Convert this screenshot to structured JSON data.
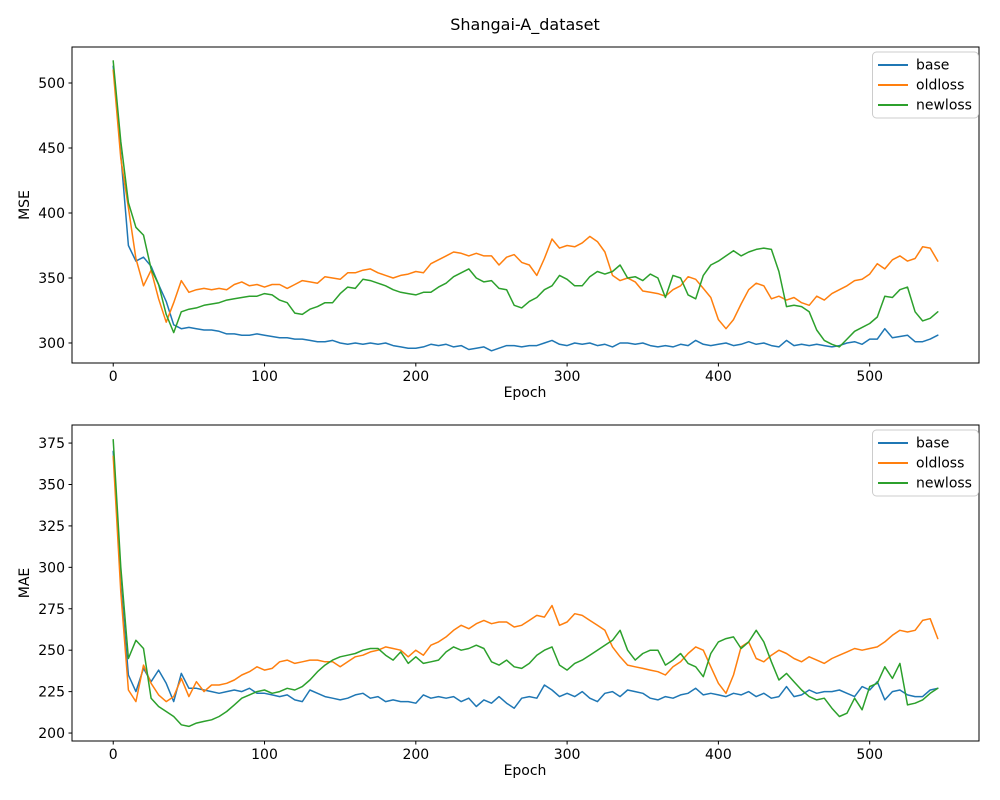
{
  "title": "Shangai-A_dataset",
  "colors": {
    "base": "#1f77b4",
    "oldloss": "#ff7f0e",
    "newloss": "#2ca02c"
  },
  "legend": {
    "items": [
      "base",
      "oldloss",
      "newloss"
    ],
    "position": "upper right"
  },
  "chart_data": [
    {
      "type": "line",
      "title": "Shangai-A_dataset",
      "xlabel": "Epoch",
      "ylabel": "MSE",
      "grid": false,
      "xlim": [
        -27.25,
        572.25
      ],
      "ylim": [
        284.6,
        527.7
      ],
      "xticks": [
        0,
        100,
        200,
        300,
        400,
        500
      ],
      "yticks": [
        300,
        350,
        400,
        450,
        500
      ],
      "legend_position": "upper right",
      "x": [
        0,
        5,
        10,
        15,
        20,
        25,
        30,
        35,
        40,
        45,
        50,
        55,
        60,
        65,
        70,
        75,
        80,
        85,
        90,
        95,
        100,
        105,
        110,
        115,
        120,
        125,
        130,
        135,
        140,
        145,
        150,
        155,
        160,
        165,
        170,
        175,
        180,
        185,
        190,
        195,
        200,
        205,
        210,
        215,
        220,
        225,
        230,
        235,
        240,
        245,
        250,
        255,
        260,
        265,
        270,
        275,
        280,
        285,
        290,
        295,
        300,
        305,
        310,
        315,
        320,
        325,
        330,
        335,
        340,
        345,
        350,
        355,
        360,
        365,
        370,
        375,
        380,
        385,
        390,
        395,
        400,
        405,
        410,
        415,
        420,
        425,
        430,
        435,
        440,
        445,
        450,
        455,
        460,
        465,
        470,
        475,
        480,
        485,
        490,
        495,
        500,
        505,
        510,
        515,
        520,
        525,
        530,
        535,
        540,
        545
      ],
      "series": [
        {
          "name": "base",
          "color": "#1f77b4",
          "values": [
            513,
            445,
            375,
            363,
            366,
            359,
            345,
            332,
            314,
            311,
            312,
            311,
            310,
            310,
            309,
            307,
            307,
            306,
            306,
            307,
            306,
            305,
            304,
            304,
            303,
            303,
            302,
            301,
            301,
            302,
            300,
            299,
            300,
            299,
            300,
            299,
            300,
            298,
            297,
            296,
            296,
            297,
            299,
            298,
            299,
            297,
            298,
            295,
            296,
            297,
            294,
            296,
            298,
            298,
            297,
            298,
            298,
            300,
            302,
            299,
            298,
            300,
            299,
            300,
            298,
            299,
            297,
            300,
            300,
            299,
            300,
            298,
            297,
            298,
            297,
            299,
            298,
            302,
            299,
            298,
            299,
            300,
            298,
            299,
            301,
            299,
            300,
            298,
            297,
            302,
            298,
            299,
            298,
            299,
            298,
            297,
            298,
            300,
            301,
            299,
            303,
            303,
            311,
            304,
            305,
            306,
            301,
            301,
            303,
            306
          ]
        },
        {
          "name": "oldloss",
          "color": "#ff7f0e",
          "values": [
            510,
            442,
            404,
            365,
            344,
            356,
            334,
            316,
            331,
            348,
            339,
            341,
            342,
            341,
            342,
            341,
            345,
            347,
            344,
            345,
            343,
            345,
            345,
            342,
            345,
            348,
            347,
            346,
            351,
            350,
            349,
            354,
            354,
            356,
            357,
            354,
            352,
            350,
            352,
            353,
            355,
            354,
            361,
            364,
            367,
            370,
            369,
            367,
            369,
            367,
            367,
            360,
            366,
            368,
            362,
            360,
            352,
            365,
            380,
            373,
            375,
            374,
            377,
            382,
            378,
            370,
            352,
            348,
            350,
            347,
            340,
            339,
            338,
            336,
            341,
            344,
            351,
            349,
            342,
            335,
            318,
            311,
            318,
            330,
            341,
            346,
            344,
            334,
            336,
            333,
            335,
            331,
            329,
            336,
            333,
            338,
            341,
            344,
            348,
            349,
            353,
            361,
            357,
            364,
            367,
            363,
            365,
            374,
            373,
            363
          ]
        },
        {
          "name": "newloss",
          "color": "#2ca02c",
          "values": [
            517,
            455,
            408,
            389,
            383,
            357,
            345,
            322,
            308,
            324,
            326,
            327,
            329,
            330,
            331,
            333,
            334,
            335,
            336,
            336,
            338,
            337,
            333,
            331,
            323,
            322,
            326,
            328,
            331,
            331,
            338,
            343,
            342,
            349,
            348,
            346,
            344,
            341,
            339,
            338,
            337,
            339,
            339,
            343,
            346,
            351,
            354,
            357,
            350,
            347,
            348,
            342,
            341,
            329,
            327,
            332,
            335,
            341,
            344,
            352,
            349,
            344,
            344,
            351,
            355,
            353,
            355,
            360,
            350,
            351,
            348,
            353,
            350,
            335,
            352,
            350,
            337,
            334,
            352,
            360,
            363,
            367,
            371,
            367,
            370,
            372,
            373,
            372,
            355,
            328,
            329,
            328,
            324,
            310,
            302,
            299,
            297,
            303,
            309,
            312,
            315,
            320,
            336,
            335,
            341,
            343,
            324,
            317,
            319,
            324
          ]
        }
      ]
    },
    {
      "type": "line",
      "title": "",
      "xlabel": "Epoch",
      "ylabel": "MAE",
      "grid": false,
      "xlim": [
        -27.25,
        572.25
      ],
      "ylim": [
        195.2,
        385.9
      ],
      "xticks": [
        0,
        100,
        200,
        300,
        400,
        500
      ],
      "yticks": [
        200,
        225,
        250,
        275,
        300,
        325,
        350,
        375
      ],
      "legend_position": "upper right",
      "x": [
        0,
        5,
        10,
        15,
        20,
        25,
        30,
        35,
        40,
        45,
        50,
        55,
        60,
        65,
        70,
        75,
        80,
        85,
        90,
        95,
        100,
        105,
        110,
        115,
        120,
        125,
        130,
        135,
        140,
        145,
        150,
        155,
        160,
        165,
        170,
        175,
        180,
        185,
        190,
        195,
        200,
        205,
        210,
        215,
        220,
        225,
        230,
        235,
        240,
        245,
        250,
        255,
        260,
        265,
        270,
        275,
        280,
        285,
        290,
        295,
        300,
        305,
        310,
        315,
        320,
        325,
        330,
        335,
        340,
        345,
        350,
        355,
        360,
        365,
        370,
        375,
        380,
        385,
        390,
        395,
        400,
        405,
        410,
        415,
        420,
        425,
        430,
        435,
        440,
        445,
        450,
        455,
        460,
        465,
        470,
        475,
        480,
        485,
        490,
        495,
        500,
        505,
        510,
        515,
        520,
        525,
        530,
        535,
        540,
        545
      ],
      "series": [
        {
          "name": "base",
          "color": "#1f77b4",
          "values": [
            370,
            290,
            235,
            225,
            239,
            231,
            238,
            230,
            219,
            236,
            227,
            227,
            226,
            225,
            224,
            225,
            226,
            225,
            227,
            224,
            224,
            223,
            222,
            223,
            220,
            219,
            226,
            224,
            222,
            221,
            220,
            221,
            223,
            224,
            221,
            222,
            219,
            220,
            219,
            219,
            218,
            223,
            221,
            222,
            221,
            222,
            219,
            221,
            216,
            220,
            218,
            222,
            218,
            215,
            221,
            222,
            221,
            229,
            226,
            222,
            224,
            222,
            225,
            221,
            219,
            224,
            225,
            222,
            226,
            225,
            224,
            221,
            220,
            222,
            221,
            223,
            224,
            227,
            223,
            224,
            223,
            222,
            224,
            223,
            225,
            222,
            224,
            221,
            222,
            228,
            222,
            223,
            226,
            224,
            225,
            225,
            226,
            224,
            222,
            228,
            226,
            231,
            220,
            225,
            226,
            223,
            222,
            222,
            226,
            227
          ]
        },
        {
          "name": "oldloss",
          "color": "#ff7f0e",
          "values": [
            367,
            285,
            226,
            219,
            241,
            230,
            223,
            219,
            222,
            233,
            222,
            231,
            225,
            229,
            229,
            230,
            232,
            235,
            237,
            240,
            238,
            239,
            243,
            244,
            242,
            243,
            244,
            244,
            243,
            243,
            240,
            243,
            246,
            247,
            249,
            250,
            252,
            251,
            250,
            246,
            250,
            247,
            253,
            255,
            258,
            262,
            265,
            263,
            266,
            268,
            266,
            267,
            267,
            264,
            265,
            268,
            271,
            270,
            277,
            265,
            267,
            272,
            271,
            268,
            265,
            262,
            252,
            246,
            241,
            240,
            239,
            238,
            237,
            235,
            240,
            243,
            248,
            252,
            250,
            240,
            230,
            224,
            235,
            252,
            255,
            245,
            243,
            247,
            250,
            248,
            245,
            243,
            246,
            244,
            242,
            245,
            247,
            249,
            251,
            250,
            251,
            252,
            255,
            259,
            262,
            261,
            262,
            268,
            269,
            257
          ]
        },
        {
          "name": "newloss",
          "color": "#2ca02c",
          "values": [
            377,
            300,
            245,
            256,
            251,
            221,
            216,
            213,
            210,
            205,
            204,
            206,
            207,
            208,
            210,
            213,
            217,
            221,
            223,
            225,
            226,
            224,
            225,
            227,
            226,
            228,
            232,
            237,
            241,
            244,
            246,
            247,
            248,
            250,
            251,
            251,
            247,
            244,
            249,
            242,
            246,
            242,
            243,
            244,
            249,
            252,
            250,
            251,
            253,
            251,
            243,
            241,
            244,
            240,
            239,
            242,
            247,
            250,
            252,
            241,
            238,
            242,
            244,
            247,
            250,
            253,
            256,
            262,
            250,
            244,
            248,
            250,
            250,
            241,
            244,
            248,
            242,
            240,
            234,
            248,
            255,
            257,
            258,
            251,
            255,
            262,
            255,
            243,
            232,
            236,
            231,
            226,
            222,
            220,
            221,
            215,
            210,
            212,
            221,
            214,
            228,
            230,
            240,
            233,
            242,
            217,
            218,
            220,
            224,
            227
          ]
        }
      ]
    }
  ]
}
